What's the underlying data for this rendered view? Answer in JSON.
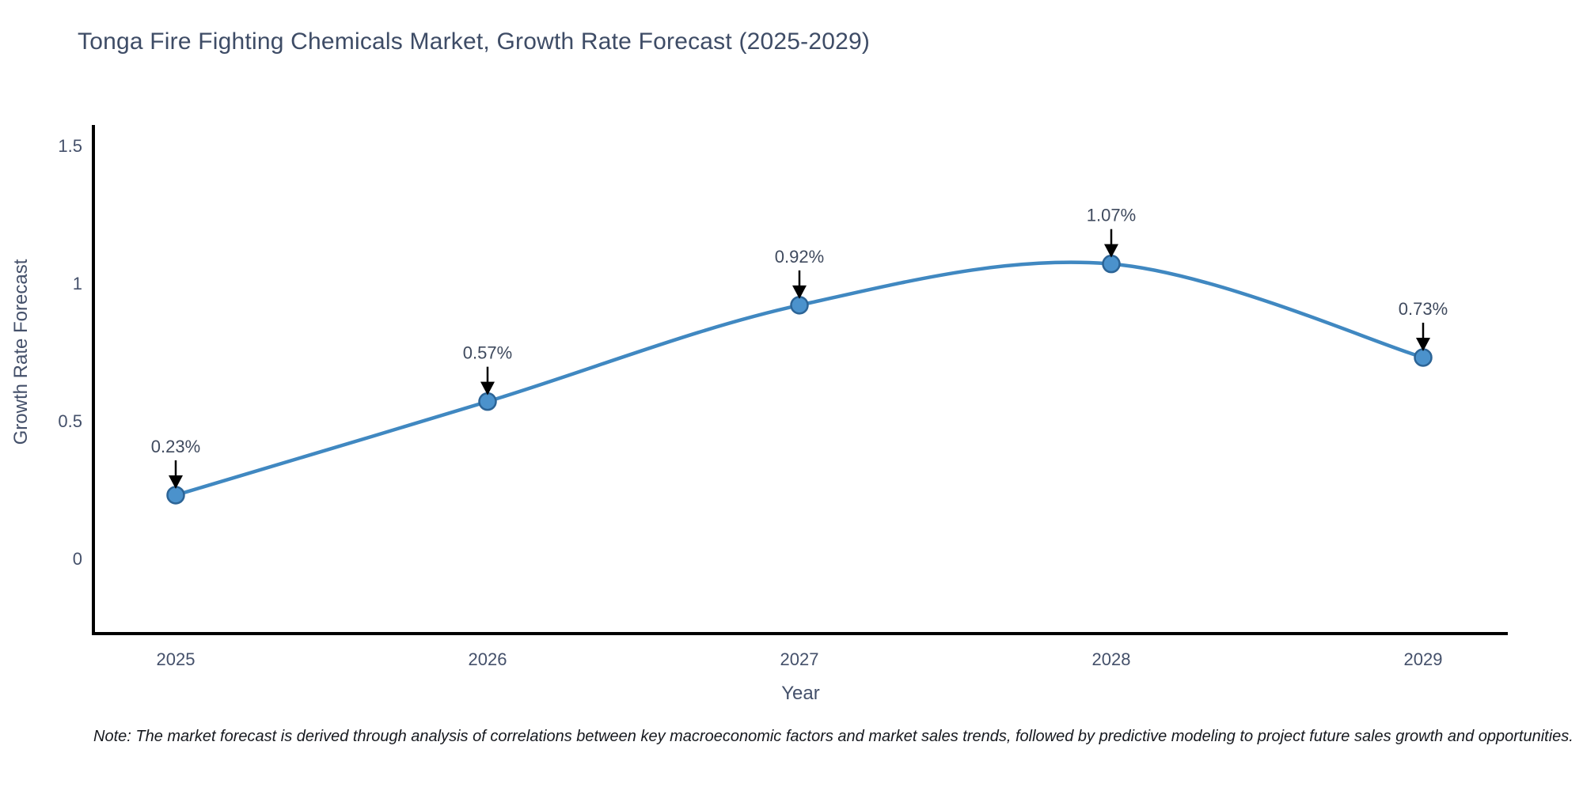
{
  "page": {
    "title": "Tonga Fire Fighting Chemicals Market, Growth Rate Forecast (2025-2029)",
    "note": "Note: The market forecast is derived through analysis of correlations between key macroeconomic factors and market sales trends, followed by predictive modeling to project future sales growth and opportunities."
  },
  "chart_data": {
    "type": "line",
    "title": "Tonga Fire Fighting Chemicals Market, Growth Rate Forecast (2025-2029)",
    "categories": [
      "2025",
      "2026",
      "2027",
      "2028",
      "2029"
    ],
    "values": [
      0.23,
      0.57,
      0.92,
      1.07,
      0.73
    ],
    "point_labels": [
      "0.23%",
      "0.57%",
      "0.92%",
      "1.07%",
      "0.73%"
    ],
    "xlabel": "Year",
    "ylabel": "Growth Rate Forecast",
    "ytick_labels": [
      "0",
      "0.5",
      "1",
      "1.5"
    ],
    "ytick_values": [
      0,
      0.5,
      1,
      1.5
    ],
    "ylim": [
      -0.27,
      1.58
    ],
    "curve": "spline",
    "grid": false,
    "legend": "none",
    "markers": true,
    "annotations_arrow": "down",
    "colors": {
      "line": "#4088c1",
      "marker_fill": "#4b92cc",
      "marker_stroke": "#2c6496",
      "arrow": "#000000",
      "axis": "#000000",
      "tick_text": "#44506a",
      "title_text": "#3e4c66",
      "note_text": "#16191f",
      "background": "#ffffff"
    }
  }
}
